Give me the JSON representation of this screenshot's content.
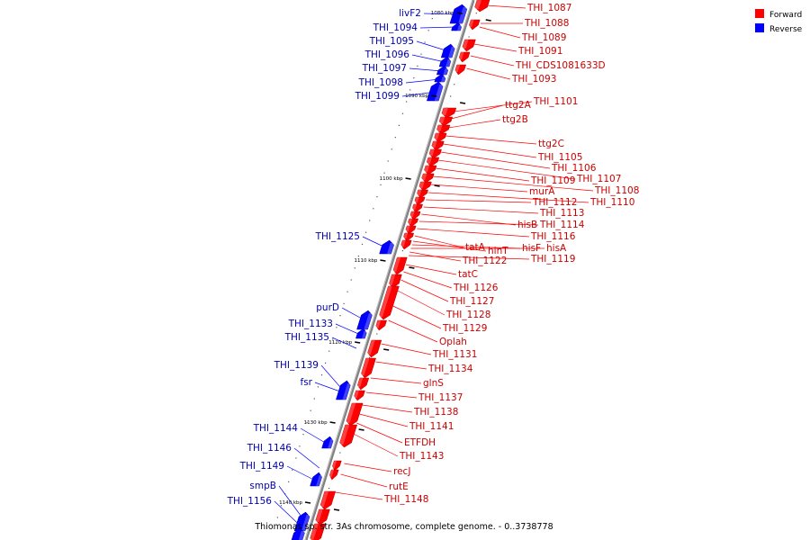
{
  "title": "Thiomonas sp. str. 3As chromosome, complete genome. - 0..3738778",
  "legend": [
    {
      "label": "Forward",
      "color": "#ff0000"
    },
    {
      "label": "Reverse",
      "color": "#0000ff"
    }
  ],
  "colors": {
    "forward": "#ff0000",
    "reverse": "#0000ff",
    "backbone": "#808080",
    "label_forward": "#cc0000",
    "label_reverse": "#0000aa"
  },
  "ticks": [
    {
      "label": "1080 kbp",
      "kbp": 1080
    },
    {
      "label": "1090 kbp",
      "kbp": 1090
    },
    {
      "label": "1100 kbp",
      "kbp": 1100
    },
    {
      "label": "1110 kbp",
      "kbp": 1110
    },
    {
      "label": "1120 kbp",
      "kbp": 1120
    },
    {
      "label": "1130 kbp",
      "kbp": 1130
    },
    {
      "label": "1140 kbp",
      "kbp": 1140
    }
  ],
  "genes_reverse": [
    {
      "label": "livF2"
    },
    {
      "label": "THI_1094"
    },
    {
      "label": "THI_1095"
    },
    {
      "label": "THI_1096"
    },
    {
      "label": "THI_1097"
    },
    {
      "label": "THI_1098"
    },
    {
      "label": "THI_1099"
    },
    {
      "label": "THI_1125"
    },
    {
      "label": "purD"
    },
    {
      "label": "THI_1133"
    },
    {
      "label": "THI_1135"
    },
    {
      "label": "THI_1139"
    },
    {
      "label": "fsr"
    },
    {
      "label": "THI_1144"
    },
    {
      "label": "THI_1146"
    },
    {
      "label": "THI_1149"
    },
    {
      "label": "smpB"
    },
    {
      "label": "THI_1156"
    }
  ],
  "genes_forward": [
    {
      "label": "THI_1087"
    },
    {
      "label": "THI_1088"
    },
    {
      "label": "THI_1089"
    },
    {
      "label": "THI_1091"
    },
    {
      "label": "THI_CDS1081633D"
    },
    {
      "label": "THI_1093"
    },
    {
      "label": "THI_1101"
    },
    {
      "label": "ttg2A"
    },
    {
      "label": "ttg2B"
    },
    {
      "label": "ttg2C"
    },
    {
      "label": "THI_1105"
    },
    {
      "label": "THI_1106"
    },
    {
      "label": "THI_1107"
    },
    {
      "label": "THI_1109"
    },
    {
      "label": "THI_1108"
    },
    {
      "label": "murA"
    },
    {
      "label": "THI_1110"
    },
    {
      "label": "THI_1112"
    },
    {
      "label": "THI_1113"
    },
    {
      "label": "hisB"
    },
    {
      "label": "THI_1114"
    },
    {
      "label": "THI_1116"
    },
    {
      "label": "tatA"
    },
    {
      "label": "hinT"
    },
    {
      "label": "hisF"
    },
    {
      "label": "hisA"
    },
    {
      "label": "THI_1122"
    },
    {
      "label": "THI_1119"
    },
    {
      "label": "tatC"
    },
    {
      "label": "THI_1126"
    },
    {
      "label": "THI_1127"
    },
    {
      "label": "THI_1128"
    },
    {
      "label": "THI_1129"
    },
    {
      "label": "Oplah"
    },
    {
      "label": "THI_1131"
    },
    {
      "label": "THI_1134"
    },
    {
      "label": "glnS"
    },
    {
      "label": "THI_1137"
    },
    {
      "label": "THI_1138"
    },
    {
      "label": "THI_1141"
    },
    {
      "label": "ETFDH"
    },
    {
      "label": "THI_1143"
    },
    {
      "label": "recJ"
    },
    {
      "label": "rutE"
    },
    {
      "label": "THI_1148"
    }
  ]
}
